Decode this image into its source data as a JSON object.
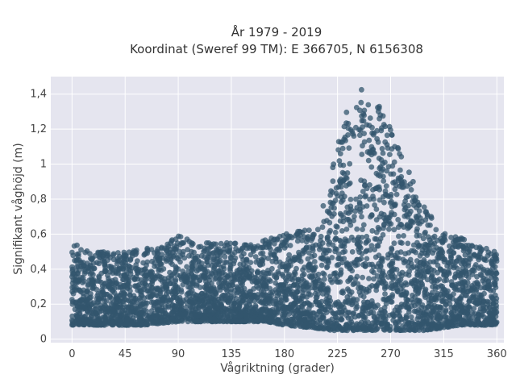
{
  "chart_data": {
    "type": "scatter",
    "title": "År 1979 - 2019",
    "subtitle": "Koordinat (Sweref 99 TM): E 366705, N 6156308",
    "xlabel": "Vågriktning (grader)",
    "ylabel": "Signifikant våghöjd (m)",
    "xlim": [
      -18,
      366
    ],
    "ylim": [
      -0.02,
      1.5
    ],
    "x_ticks": [
      0,
      45,
      90,
      135,
      180,
      225,
      270,
      315,
      360
    ],
    "x_tick_labels": [
      "0",
      "45",
      "90",
      "135",
      "180",
      "225",
      "270",
      "315",
      "360"
    ],
    "y_ticks": [
      0,
      0.2,
      0.4,
      0.6,
      0.8,
      1.0,
      1.2,
      1.4
    ],
    "y_tick_labels": [
      "0",
      "0,2",
      "0,4",
      "0,6",
      "0,8",
      "1",
      "1,2",
      "1,4"
    ],
    "grid": true,
    "background_color": "#e5e5ef",
    "marker_color": "#33566e",
    "envelope": {
      "direction": [
        0,
        10,
        20,
        30,
        45,
        60,
        75,
        90,
        105,
        120,
        135,
        150,
        165,
        180,
        195,
        210,
        220,
        230,
        240,
        250,
        260,
        270,
        280,
        290,
        300,
        310,
        320,
        330,
        340,
        350,
        360
      ],
      "max_height": [
        0.56,
        0.52,
        0.5,
        0.5,
        0.5,
        0.52,
        0.52,
        0.6,
        0.55,
        0.55,
        0.55,
        0.55,
        0.58,
        0.6,
        0.62,
        0.7,
        0.95,
        1.3,
        1.42,
        1.43,
        1.35,
        1.2,
        1.05,
        0.9,
        0.75,
        0.65,
        0.6,
        0.58,
        0.55,
        0.52,
        0.5
      ],
      "min_height": [
        0.08,
        0.08,
        0.08,
        0.08,
        0.08,
        0.08,
        0.09,
        0.1,
        0.1,
        0.1,
        0.1,
        0.1,
        0.1,
        0.08,
        0.07,
        0.06,
        0.05,
        0.05,
        0.05,
        0.05,
        0.05,
        0.05,
        0.05,
        0.05,
        0.05,
        0.06,
        0.07,
        0.08,
        0.08,
        0.08,
        0.08
      ]
    }
  }
}
